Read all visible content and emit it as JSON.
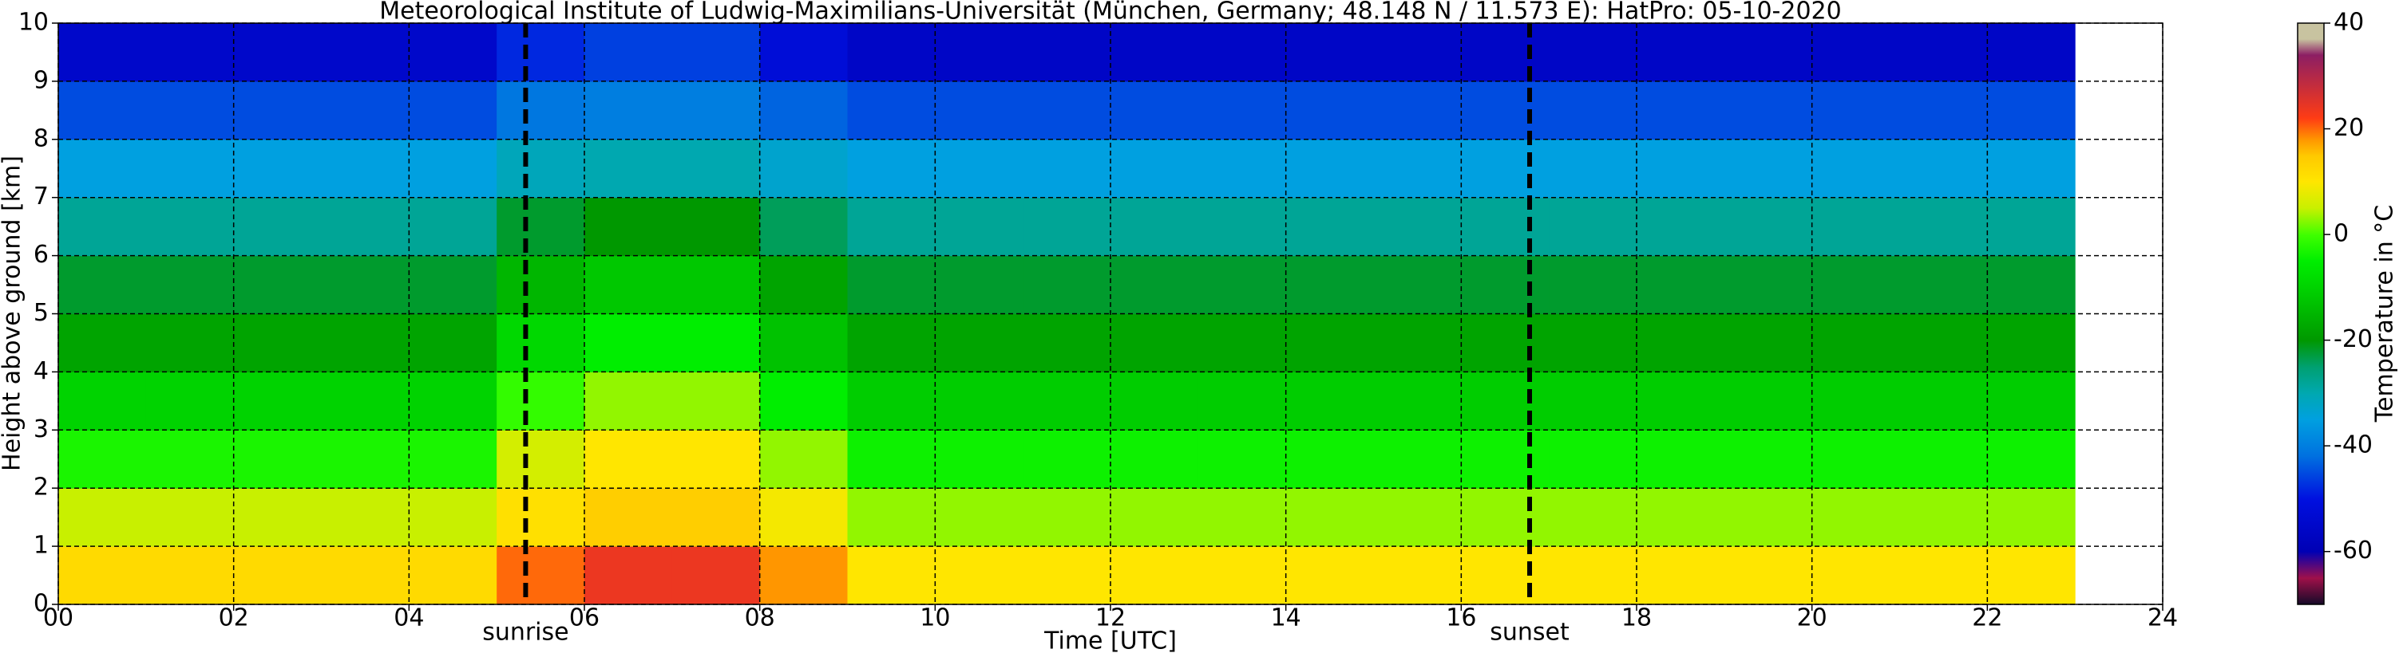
{
  "chart_data": {
    "type": "heatmap",
    "title": "Meteorological Institute of Ludwig-Maximilians-Universität (München, Germany; 48.148 N / 11.573 E):    HatPro: 05-10-2020",
    "x_label": "Time [UTC]",
    "y_label": "Height above ground [km]",
    "colorbar_label": "Temperature in °C",
    "xbins": [
      0,
      1,
      2,
      3,
      4,
      5,
      6,
      7,
      8,
      9,
      10,
      11,
      12,
      13,
      14,
      15,
      16,
      17,
      18,
      19,
      20,
      21,
      22,
      23
    ],
    "ybins": [
      0,
      1,
      2,
      3,
      4,
      5,
      6,
      7,
      8,
      9,
      10
    ],
    "z": [
      [
        12,
        12,
        12,
        12,
        12,
        20,
        24,
        24,
        18,
        10,
        10,
        10,
        10,
        10,
        10,
        10,
        10,
        10,
        10,
        10,
        10,
        10,
        10
      ],
      [
        5,
        5,
        5,
        5,
        5,
        11,
        14,
        14,
        9,
        3,
        3,
        3,
        3,
        3,
        3,
        3,
        3,
        3,
        3,
        3,
        3,
        3,
        3
      ],
      [
        -3,
        -3,
        -3,
        -3,
        -3,
        6,
        10,
        10,
        3,
        -4,
        -4,
        -4,
        -4,
        -4,
        -4,
        -4,
        -4,
        -4,
        -4,
        -4,
        -4,
        -4,
        -4
      ],
      [
        -10,
        -10,
        -10,
        -10,
        -10,
        -1,
        3,
        3,
        -5,
        -11,
        -11,
        -11,
        -11,
        -11,
        -11,
        -11,
        -11,
        -11,
        -11,
        -11,
        -11,
        -11,
        -11
      ],
      [
        -18,
        -18,
        -18,
        -18,
        -18,
        -9,
        -5,
        -5,
        -13,
        -18,
        -18,
        -18,
        -18,
        -18,
        -18,
        -18,
        -18,
        -18,
        -18,
        -18,
        -18,
        -18,
        -18
      ],
      [
        -22,
        -22,
        -22,
        -22,
        -22,
        -15,
        -12,
        -12,
        -18,
        -22,
        -22,
        -22,
        -22,
        -22,
        -22,
        -22,
        -22,
        -22,
        -22,
        -22,
        -22,
        -22,
        -22
      ],
      [
        -28,
        -28,
        -28,
        -28,
        -28,
        -22,
        -20,
        -20,
        -24,
        -28,
        -28,
        -28,
        -28,
        -28,
        -28,
        -28,
        -28,
        -28,
        -28,
        -28,
        -28,
        -28,
        -28
      ],
      [
        -35,
        -35,
        -35,
        -35,
        -35,
        -31,
        -30,
        -30,
        -33,
        -35,
        -35,
        -35,
        -35,
        -35,
        -35,
        -35,
        -35,
        -35,
        -35,
        -35,
        -35,
        -35,
        -35
      ],
      [
        -45,
        -45,
        -45,
        -45,
        -45,
        -41,
        -40,
        -40,
        -43,
        -45,
        -45,
        -45,
        -45,
        -45,
        -45,
        -45,
        -45,
        -45,
        -45,
        -45,
        -45,
        -45,
        -45
      ],
      [
        -55,
        -55,
        -55,
        -55,
        -55,
        -48,
        -46,
        -46,
        -52,
        -56,
        -56,
        -56,
        -56,
        -56,
        -56,
        -56,
        -56,
        -56,
        -56,
        -56,
        -56,
        -56,
        -56
      ]
    ],
    "xlim": [
      0,
      24
    ],
    "xticks": [
      {
        "value": 0,
        "label": "00"
      },
      {
        "value": 2,
        "label": "02"
      },
      {
        "value": 4,
        "label": "04"
      },
      {
        "value": 6,
        "label": "06"
      },
      {
        "value": 8,
        "label": "08"
      },
      10,
      12,
      14,
      16,
      18,
      20,
      22,
      24
    ],
    "ylim": [
      0,
      10
    ],
    "yticks": [
      0,
      1,
      2,
      3,
      4,
      5,
      6,
      7,
      8,
      9,
      10
    ],
    "zlim": [
      -70,
      40
    ],
    "zticks": [
      -60,
      -40,
      -20,
      0,
      20,
      40
    ],
    "colormap": [
      {
        "value": -70,
        "color": "#140a28"
      },
      {
        "value": -65,
        "color": "#a0104a"
      },
      {
        "value": -60,
        "color": "#0000b4"
      },
      {
        "value": -50,
        "color": "#0010e0"
      },
      {
        "value": -42,
        "color": "#0070e0"
      },
      {
        "value": -35,
        "color": "#00a0e0"
      },
      {
        "value": -30,
        "color": "#00a8b0"
      },
      {
        "value": -25,
        "color": "#00a070"
      },
      {
        "value": -20,
        "color": "#009800"
      },
      {
        "value": -12,
        "color": "#00c800"
      },
      {
        "value": -5,
        "color": "#00ee00"
      },
      {
        "value": 0,
        "color": "#40ff00"
      },
      {
        "value": 5,
        "color": "#c8f000"
      },
      {
        "value": 10,
        "color": "#ffe600"
      },
      {
        "value": 15,
        "color": "#ffc800"
      },
      {
        "value": 18,
        "color": "#ff9600"
      },
      {
        "value": 22,
        "color": "#ff3c14"
      },
      {
        "value": 34,
        "color": "#8c1e64"
      },
      {
        "value": 37,
        "color": "#c8c3a0"
      },
      {
        "value": 40,
        "color": "#c8c3a0"
      }
    ],
    "grid": true,
    "annotations": [
      {
        "text": "sunrise",
        "x": 5.33
      },
      {
        "text": "sunset",
        "x": 16.78
      }
    ]
  }
}
